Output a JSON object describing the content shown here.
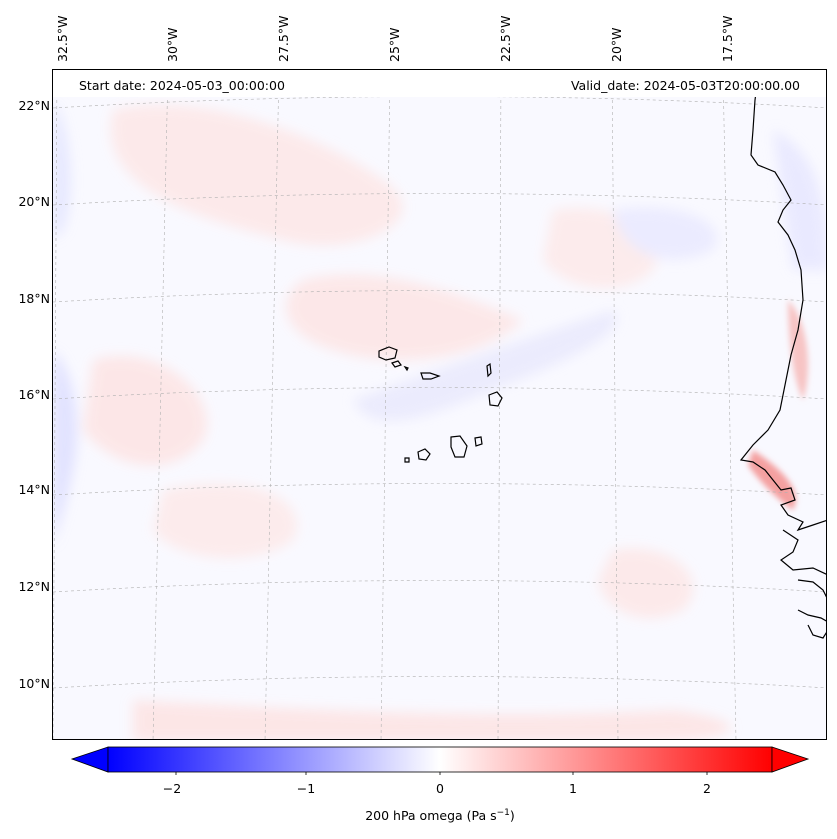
{
  "map": {
    "start_date": "Start date: 2024-05-03_00:00:00",
    "valid_date": "Valid_date: 2024-05-03T20:00:00.00",
    "field": "200 hPa omega",
    "colors": {
      "positive": "#ff0000",
      "negative": "#0000ff",
      "neutral": "#ffffff",
      "coastline": "#000000",
      "gridline": "#b0b0b0"
    },
    "longitude_labels": [
      "32.5°W",
      "30°W",
      "27.5°W",
      "25°W",
      "22.5°W",
      "20°W",
      "17.5°W"
    ],
    "latitude_labels": [
      "22°N",
      "20°N",
      "18°N",
      "16°N",
      "14°N",
      "12°N",
      "10°N"
    ],
    "features": [
      "Cape Verde islands",
      "West African coastline"
    ]
  },
  "colorbar": {
    "ticks": [
      "−2",
      "−1",
      "0",
      "1",
      "2"
    ],
    "range": [
      -2.6,
      2.6
    ],
    "label_main": "200 hPa omega (Pa s",
    "label_sup": "−1",
    "label_end": ")"
  }
}
